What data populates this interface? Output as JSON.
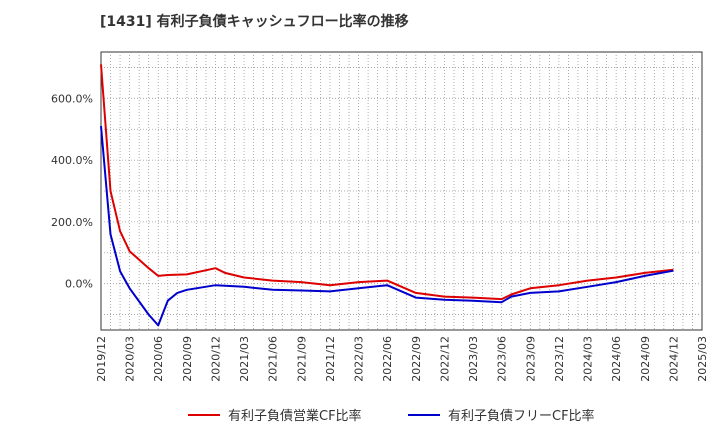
{
  "chart_data": {
    "type": "line",
    "title": "[1431]  有利子負債キャッシュフロー比率の推移",
    "xlabel": "",
    "ylabel": "",
    "ylim": [
      -150,
      750
    ],
    "yticks": [
      0,
      200,
      400,
      600
    ],
    "ytick_labels": [
      "0.0%",
      "200.0%",
      "400.0%",
      "600.0%"
    ],
    "xticks": [
      "2019/12",
      "2020/03",
      "2020/06",
      "2020/09",
      "2020/12",
      "2021/03",
      "2021/06",
      "2021/09",
      "2021/12",
      "2022/03",
      "2022/06",
      "2022/09",
      "2022/12",
      "2023/03",
      "2023/06",
      "2023/09",
      "2023/12",
      "2024/03",
      "2024/06",
      "2024/09",
      "2024/12",
      "2025/03"
    ],
    "grid": true,
    "legend_position": "bottom",
    "series": [
      {
        "name": "有利子負債営業CF比率",
        "color": "#dd0000",
        "x": [
          "2019/12",
          "2020/01",
          "2020/02",
          "2020/03",
          "2020/05",
          "2020/06",
          "2020/07",
          "2020/09",
          "2020/12",
          "2021/01",
          "2021/03",
          "2021/06",
          "2021/09",
          "2021/12",
          "2022/03",
          "2022/06",
          "2022/09",
          "2022/12",
          "2023/03",
          "2023/06",
          "2023/07",
          "2023/09",
          "2023/12",
          "2024/03",
          "2024/06",
          "2024/09",
          "2024/12"
        ],
        "values": [
          710,
          300,
          170,
          105,
          50,
          25,
          28,
          30,
          50,
          35,
          20,
          10,
          5,
          -5,
          5,
          10,
          -30,
          -42,
          -45,
          -50,
          -35,
          -15,
          -5,
          10,
          20,
          35,
          45
        ]
      },
      {
        "name": "有利子負債フリーCF比率",
        "color": "#0000cc",
        "x": [
          "2019/12",
          "2020/01",
          "2020/02",
          "2020/03",
          "2020/05",
          "2020/06",
          "2020/07",
          "2020/08",
          "2020/09",
          "2020/12",
          "2021/03",
          "2021/06",
          "2021/09",
          "2021/12",
          "2022/03",
          "2022/06",
          "2022/09",
          "2022/12",
          "2023/03",
          "2023/06",
          "2023/07",
          "2023/09",
          "2023/12",
          "2024/03",
          "2024/06",
          "2024/09",
          "2024/12"
        ],
        "values": [
          510,
          160,
          40,
          -15,
          -100,
          -135,
          -55,
          -30,
          -20,
          -5,
          -10,
          -20,
          -22,
          -25,
          -15,
          -5,
          -45,
          -52,
          -55,
          -60,
          -42,
          -30,
          -25,
          -10,
          5,
          25,
          42
        ]
      }
    ]
  }
}
